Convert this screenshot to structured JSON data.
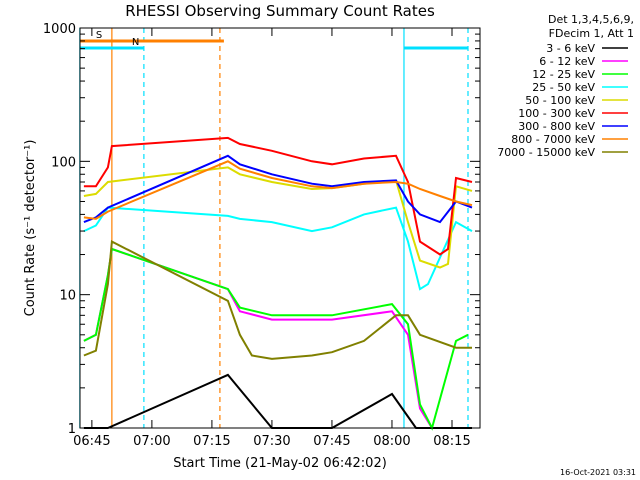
{
  "chart_data": {
    "type": "line",
    "title": "RHESSI Observing Summary Count Rates",
    "xlabel": "Start Time (21-May-02 06:42:02)",
    "ylabel": "Count Rate (s⁻¹ detector⁻¹)",
    "y_scale": "log",
    "ylim": [
      1,
      1000
    ],
    "xlim": [
      "06:42:02",
      "08:22:00"
    ],
    "x_tick_labels": [
      "06:45",
      "07:00",
      "07:15",
      "07:30",
      "07:45",
      "08:00",
      "08:15"
    ],
    "y_tick_labels": [
      "1",
      "10",
      "100",
      "1000"
    ],
    "grid": false,
    "legend_position": "right",
    "legend_header": [
      "Det 1,3,4,5,6,9,",
      "FDecim 1, Att 1"
    ],
    "timestamp": "16-Oct-2021 03:31",
    "flags": [
      {
        "label": "S",
        "color": "#ff8000",
        "start": "06:42",
        "end": "07:18"
      },
      {
        "label": "N",
        "color": "#00e0ff",
        "start": "06:42",
        "end": "06:58"
      },
      {
        "label": "",
        "color": "#00e0ff",
        "start": "08:03",
        "end": "08:19"
      }
    ],
    "vertical_markers": [
      {
        "time": "06:42",
        "color": "#00e0ff",
        "style": "solid"
      },
      {
        "time": "06:50",
        "color": "#ff8000",
        "style": "solid"
      },
      {
        "time": "06:58",
        "color": "#00e0ff",
        "style": "dashed"
      },
      {
        "time": "07:17",
        "color": "#ff8000",
        "style": "dashed"
      },
      {
        "time": "08:03",
        "color": "#00e0ff",
        "style": "solid"
      },
      {
        "time": "08:19",
        "color": "#00e0ff",
        "style": "dashed"
      }
    ],
    "series": [
      {
        "name": "3 - 6 keV",
        "color": "#000000",
        "x": [
          "06:43",
          "06:49",
          "07:19",
          "07:30",
          "07:45",
          "08:00",
          "08:06",
          "08:15",
          "08:20"
        ],
        "y": [
          1,
          1,
          2.5,
          1,
          1,
          1.8,
          1,
          1,
          1
        ]
      },
      {
        "name": "6 - 12 keV",
        "color": "#ff00ff",
        "x": [
          "06:43",
          "06:46",
          "06:49",
          "06:50",
          "07:19",
          "07:22",
          "07:30",
          "07:45",
          "08:00",
          "08:04",
          "08:07",
          "08:10"
        ],
        "y": [
          4.5,
          5,
          14,
          22,
          11,
          7.5,
          6.5,
          6.5,
          7.5,
          5,
          1.4,
          1
        ]
      },
      {
        "name": "12 - 25 keV",
        "color": "#00ff00",
        "x": [
          "06:43",
          "06:46",
          "06:49",
          "06:50",
          "07:19",
          "07:22",
          "07:30",
          "07:45",
          "08:00",
          "08:04",
          "08:07",
          "08:10",
          "08:16",
          "08:19"
        ],
        "y": [
          4.5,
          5,
          14,
          22,
          11,
          8,
          7,
          7,
          8.5,
          6,
          1.5,
          1,
          4.5,
          5
        ]
      },
      {
        "name": "25 - 50 keV",
        "color": "#00ffff",
        "x": [
          "06:43",
          "06:46",
          "06:49",
          "07:19",
          "07:22",
          "07:30",
          "07:40",
          "07:45",
          "07:53",
          "08:01",
          "08:04",
          "08:07",
          "08:09",
          "08:16",
          "08:20"
        ],
        "y": [
          30,
          33,
          45,
          39,
          37,
          35,
          30,
          32,
          40,
          45,
          25,
          11,
          12,
          35,
          30
        ]
      },
      {
        "name": "50 - 100 keV",
        "color": "#dcdc00",
        "x": [
          "06:43",
          "06:46",
          "06:49",
          "07:19",
          "07:22",
          "07:30",
          "07:40",
          "07:45",
          "07:53",
          "08:01",
          "08:04",
          "08:07",
          "08:12",
          "08:14",
          "08:16",
          "08:20"
        ],
        "y": [
          55,
          57,
          70,
          90,
          80,
          70,
          62,
          63,
          68,
          72,
          35,
          18,
          16,
          17,
          65,
          60
        ]
      },
      {
        "name": "100 - 300 keV",
        "color": "#ff0000",
        "x": [
          "06:43",
          "06:46",
          "06:49",
          "06:50",
          "07:19",
          "07:22",
          "07:30",
          "07:40",
          "07:45",
          "07:53",
          "08:01",
          "08:04",
          "08:07",
          "08:12",
          "08:14",
          "08:16",
          "08:20"
        ],
        "y": [
          65,
          65,
          90,
          130,
          150,
          135,
          120,
          100,
          95,
          105,
          110,
          70,
          25,
          20,
          22,
          75,
          70
        ]
      },
      {
        "name": "300 - 800 keV",
        "color": "#0000ff",
        "x": [
          "06:43",
          "06:46",
          "06:49",
          "07:19",
          "07:22",
          "07:30",
          "07:40",
          "07:45",
          "07:53",
          "08:01",
          "08:04",
          "08:07",
          "08:12",
          "08:16",
          "08:20"
        ],
        "y": [
          35,
          38,
          45,
          110,
          95,
          80,
          68,
          65,
          70,
          72,
          50,
          40,
          35,
          50,
          45
        ]
      },
      {
        "name": "800 - 7000 keV",
        "color": "#ff8000",
        "x": [
          "06:43",
          "06:46",
          "06:49",
          "07:19",
          "07:22",
          "07:30",
          "07:40",
          "07:45",
          "07:53",
          "08:01",
          "08:04",
          "08:07",
          "08:12",
          "08:16",
          "08:20"
        ],
        "y": [
          38,
          37,
          42,
          100,
          88,
          75,
          65,
          63,
          68,
          70,
          68,
          62,
          55,
          50,
          47
        ]
      },
      {
        "name": "7000 - 15000 keV",
        "color": "#808000",
        "x": [
          "06:43",
          "06:46",
          "06:49",
          "06:50",
          "07:19",
          "07:22",
          "07:25",
          "07:30",
          "07:40",
          "07:45",
          "07:53",
          "08:01",
          "08:04",
          "08:07",
          "08:16",
          "08:20"
        ],
        "y": [
          3.5,
          3.8,
          12,
          25,
          9,
          5,
          3.5,
          3.3,
          3.5,
          3.7,
          4.5,
          7,
          7,
          5,
          4,
          4
        ]
      }
    ]
  }
}
